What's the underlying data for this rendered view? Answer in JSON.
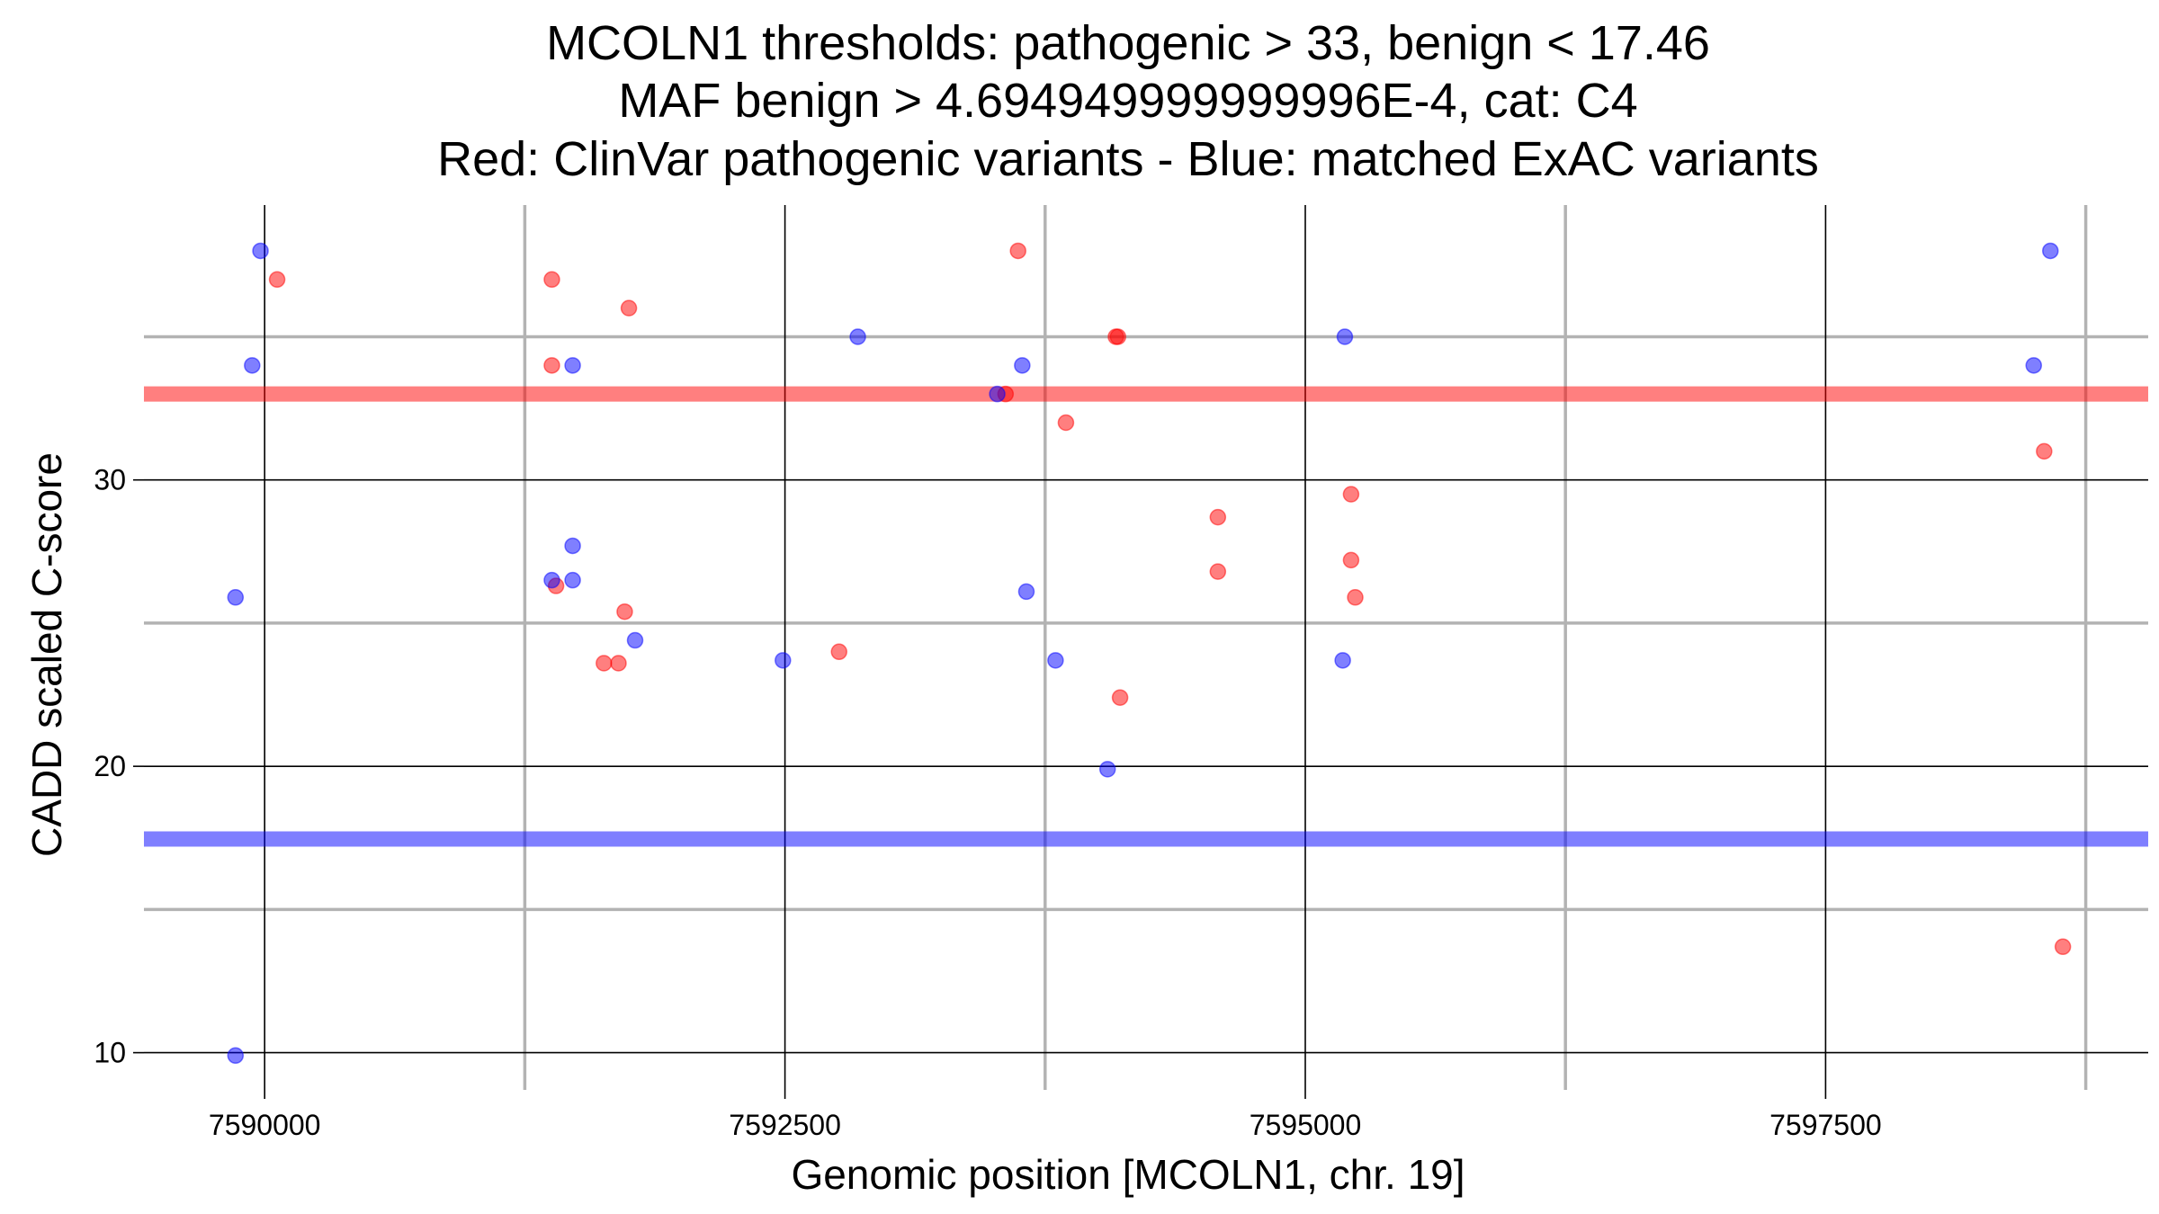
{
  "chart_data": {
    "type": "scatter",
    "title_lines": [
      "MCOLN1 thresholds: pathogenic > 33, benign < 17.46",
      "MAF benign > 4.694949999999996E-4, cat: C4",
      "Red: ClinVar pathogenic variants - Blue: matched ExAC variants"
    ],
    "xlabel": "Genomic position [MCOLN1, chr. 19]",
    "ylabel": "CADD scaled C-score",
    "xlim": [
      7589420,
      7599050
    ],
    "ylim": [
      8.7,
      39.6
    ],
    "x_major_ticks": [
      7590000,
      7592500,
      7595000,
      7597500
    ],
    "x_tick_labels": [
      "7590000",
      "7592500",
      "7595000",
      "7597500"
    ],
    "x_minor_ticks": [
      7591250,
      7593750,
      7596250,
      7598750
    ],
    "y_major_ticks": [
      10,
      20,
      30
    ],
    "y_tick_labels": [
      "10",
      "20",
      "30"
    ],
    "y_minor_ticks": [
      15,
      25,
      35
    ],
    "thresholds": [
      {
        "name": "pathogenic",
        "value": 33,
        "color": "#ff0000"
      },
      {
        "name": "benign",
        "value": 17.46,
        "color": "#0000ff"
      }
    ],
    "series": [
      {
        "name": "ClinVar pathogenic variants",
        "color": "#ff0000",
        "points": [
          {
            "x": 7590060,
            "y": 37
          },
          {
            "x": 7591380,
            "y": 37
          },
          {
            "x": 7591750,
            "y": 36
          },
          {
            "x": 7593620,
            "y": 38
          },
          {
            "x": 7594100,
            "y": 35
          },
          {
            "x": 7594090,
            "y": 35
          },
          {
            "x": 7591380,
            "y": 34
          },
          {
            "x": 7593560,
            "y": 33
          },
          {
            "x": 7593850,
            "y": 32
          },
          {
            "x": 7598550,
            "y": 31
          },
          {
            "x": 7595220,
            "y": 29.5
          },
          {
            "x": 7594580,
            "y": 28.7
          },
          {
            "x": 7595220,
            "y": 27.2
          },
          {
            "x": 7594580,
            "y": 26.8
          },
          {
            "x": 7591400,
            "y": 26.3
          },
          {
            "x": 7595240,
            "y": 25.9
          },
          {
            "x": 7591730,
            "y": 25.4
          },
          {
            "x": 7592760,
            "y": 24
          },
          {
            "x": 7591630,
            "y": 23.6
          },
          {
            "x": 7591700,
            "y": 23.6
          },
          {
            "x": 7594110,
            "y": 22.4
          },
          {
            "x": 7598640,
            "y": 13.7
          }
        ]
      },
      {
        "name": "matched ExAC variants",
        "color": "#0000ff",
        "points": [
          {
            "x": 7589980,
            "y": 38
          },
          {
            "x": 7598580,
            "y": 38
          },
          {
            "x": 7592850,
            "y": 35
          },
          {
            "x": 7595190,
            "y": 35
          },
          {
            "x": 7589940,
            "y": 34
          },
          {
            "x": 7591480,
            "y": 34
          },
          {
            "x": 7593640,
            "y": 34
          },
          {
            "x": 7598500,
            "y": 34
          },
          {
            "x": 7593520,
            "y": 33
          },
          {
            "x": 7591480,
            "y": 27.7
          },
          {
            "x": 7591380,
            "y": 26.5
          },
          {
            "x": 7591480,
            "y": 26.5
          },
          {
            "x": 7593660,
            "y": 26.1
          },
          {
            "x": 7589860,
            "y": 25.9
          },
          {
            "x": 7591780,
            "y": 24.4
          },
          {
            "x": 7592490,
            "y": 23.7
          },
          {
            "x": 7593800,
            "y": 23.7
          },
          {
            "x": 7595180,
            "y": 23.7
          },
          {
            "x": 7594050,
            "y": 19.9
          },
          {
            "x": 7589860,
            "y": 9.9
          }
        ]
      }
    ]
  }
}
